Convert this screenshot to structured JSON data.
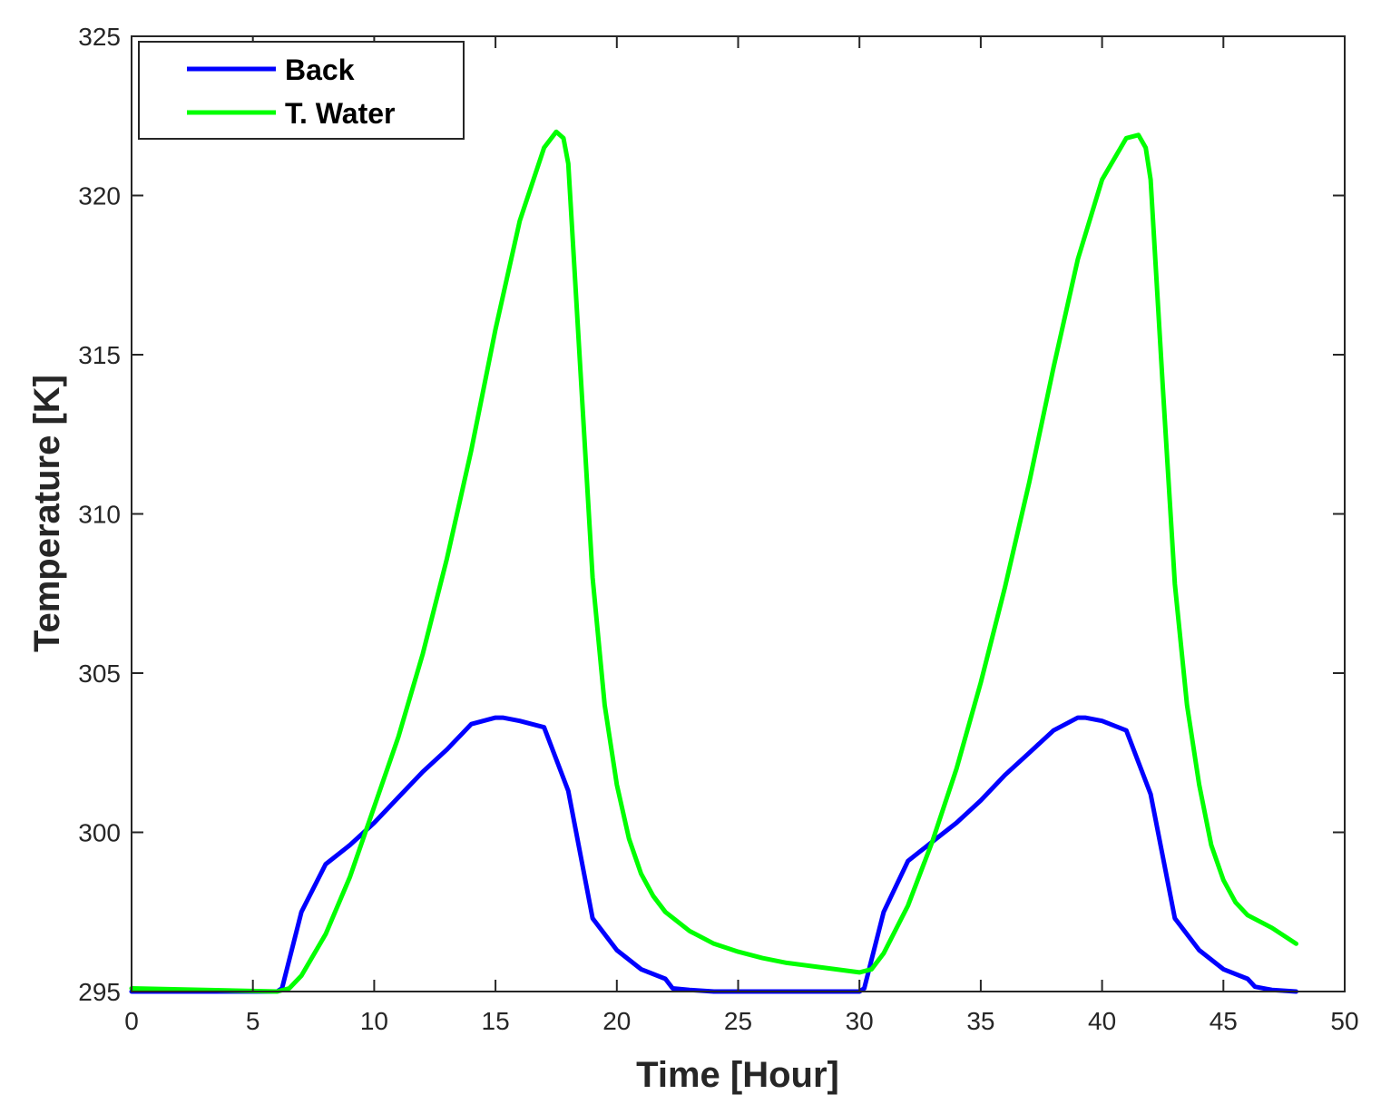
{
  "chart_data": {
    "type": "line",
    "title": "",
    "xlabel": "Time [Hour]",
    "ylabel": "Temperature [K]",
    "xlim": [
      0,
      50
    ],
    "ylim": [
      295,
      325
    ],
    "xticks": [
      0,
      5,
      10,
      15,
      20,
      25,
      30,
      35,
      40,
      45,
      50
    ],
    "yticks": [
      295,
      300,
      305,
      310,
      315,
      320,
      325
    ],
    "grid": false,
    "box": true,
    "legend_position": "top-left",
    "series": [
      {
        "name": "Back",
        "color": "#0000ff",
        "x": [
          0,
          6,
          6.2,
          7,
          8,
          9,
          10,
          11,
          12,
          13,
          14,
          15,
          15.3,
          16,
          17,
          18,
          19,
          20,
          21,
          22,
          22.3,
          23,
          24,
          25,
          26,
          27,
          28,
          29,
          30,
          30.2,
          31,
          32,
          33,
          34,
          35,
          36,
          37,
          38,
          39,
          39.3,
          40,
          41,
          42,
          43,
          44,
          45,
          46,
          46.3,
          47,
          48
        ],
        "y": [
          295.0,
          295.0,
          295.1,
          297.5,
          299.0,
          299.6,
          300.3,
          301.1,
          301.9,
          302.6,
          303.4,
          303.6,
          303.6,
          303.5,
          303.3,
          301.3,
          297.3,
          296.3,
          295.7,
          295.4,
          295.1,
          295.05,
          295.0,
          295.0,
          295.0,
          295.0,
          295.0,
          295.0,
          295.0,
          295.1,
          297.5,
          299.1,
          299.7,
          300.3,
          301.0,
          301.8,
          302.5,
          303.2,
          303.6,
          303.6,
          303.5,
          303.2,
          301.2,
          297.3,
          296.3,
          295.7,
          295.4,
          295.15,
          295.05,
          295.0
        ]
      },
      {
        "name": "T. Water",
        "color": "#00ff00",
        "x": [
          0,
          6,
          6.5,
          7,
          8,
          9,
          10,
          11,
          12,
          13,
          14,
          15,
          16,
          17,
          17.5,
          17.8,
          18,
          18.5,
          19,
          19.5,
          20,
          20.5,
          21,
          21.5,
          22,
          23,
          24,
          25,
          26,
          27,
          28,
          29,
          30,
          30.5,
          31,
          32,
          33,
          34,
          35,
          36,
          37,
          38,
          39,
          40,
          41,
          41.5,
          41.8,
          42,
          42.5,
          43,
          43.5,
          44,
          44.5,
          45,
          45.5,
          46,
          47,
          48
        ],
        "y": [
          295.1,
          295.0,
          295.1,
          295.5,
          296.8,
          298.6,
          300.8,
          303.0,
          305.6,
          308.6,
          312.0,
          315.8,
          319.2,
          321.5,
          322.0,
          321.8,
          321.0,
          314.5,
          308.0,
          304.0,
          301.5,
          299.8,
          298.7,
          298.0,
          297.5,
          296.9,
          296.5,
          296.25,
          296.05,
          295.9,
          295.8,
          295.7,
          295.6,
          295.7,
          296.2,
          297.7,
          299.7,
          302.0,
          304.7,
          307.7,
          311.0,
          314.6,
          318.0,
          320.5,
          321.8,
          321.9,
          321.5,
          320.5,
          314.0,
          307.8,
          304.0,
          301.5,
          299.6,
          298.5,
          297.8,
          297.4,
          297.0,
          296.5
        ]
      }
    ]
  }
}
